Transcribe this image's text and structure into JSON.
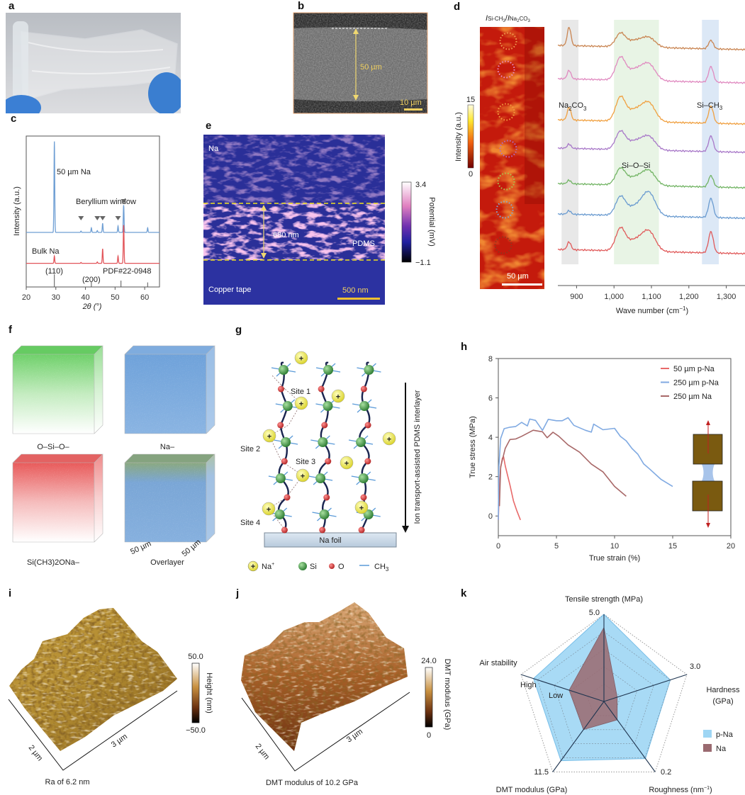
{
  "panel_letters": {
    "a": "a",
    "b": "b",
    "c": "c",
    "d": "d",
    "e": "e",
    "f": "f",
    "g": "g",
    "h": "h",
    "i": "i",
    "j": "j",
    "k": "k"
  },
  "b": {
    "thickness": "50 µm",
    "scale_bar": "10 µm"
  },
  "d_map": {
    "title_parts": [
      "I",
      "Si-CH",
      "3",
      "/",
      "I",
      "Na",
      "2",
      "CO",
      "3"
    ],
    "colorbar_max": "15",
    "colorbar_min": "0",
    "colorbar_label": "Intensity (a.u.)",
    "scale_bar": "50 µm",
    "spot_colors": [
      "#f0a050",
      "#e890c8",
      "#f2a040",
      "#b070c8",
      "#a8c850",
      "#80a8d8",
      "#8a3a20"
    ]
  },
  "e": {
    "top_label": "Na",
    "thickness": "680 nm",
    "layer_label": "PDMS",
    "bottom_label": "Copper tape",
    "scale_bar": "500 nm",
    "colorbar_max": "3.4",
    "colorbar_min": "−1.1",
    "colorbar_label": "Potential (mV)"
  },
  "f": {
    "labels": [
      "O–Si–O–",
      "Na–",
      "Si(CH3)2ONa–",
      "Overlayer"
    ],
    "dim_x": "50 µm",
    "dim_y": "50 µm"
  },
  "g": {
    "sites": [
      "Site 1",
      "Site 2",
      "Site 3",
      "Site 4"
    ],
    "foil": "Na foil",
    "arrow_label": "Ion transport-assisted PDMS interlayer",
    "legend": {
      "na": "Na",
      "na_sup": "+",
      "si": "Si",
      "o": "O",
      "ch3": "CH",
      "ch3_sub": "3"
    },
    "plus": "+"
  },
  "i": {
    "colorbar_max": "50.0",
    "colorbar_min": "−50.0",
    "colorbar_label": "Height (nm)",
    "dim_y": "2 µm",
    "dim_x": "3 µm",
    "caption": "Ra of 6.2 nm"
  },
  "j": {
    "colorbar_max": "24.0",
    "colorbar_min": "0",
    "colorbar_label": "DMT modulus (GPa)",
    "dim_y": "2 µm",
    "dim_x": "3 µm",
    "caption": "DMT modulus of 10.2 GPa"
  },
  "chart_data": [
    {
      "panel": "c",
      "type": "line",
      "title": "",
      "xlabel": "2θ (°)",
      "ylabel": "Intensity (a.u.)",
      "xlim": [
        20,
        65
      ],
      "ylim": [
        0,
        1.66
      ],
      "xticks": [
        20,
        30,
        40,
        50,
        60
      ],
      "xtick_labels": [
        "20",
        "30",
        "40",
        "50",
        "60"
      ],
      "series": [
        {
          "name": "50 µm Na",
          "color": "#6f9fd4",
          "offset": 0.6,
          "peaks": [
            [
              29.5,
              1.0
            ],
            [
              38.5,
              0.015
            ],
            [
              42,
              0.05
            ],
            [
              44,
              0.02
            ],
            [
              45.8,
              0.1
            ],
            [
              51,
              0.07
            ],
            [
              52.9,
              0.3
            ],
            [
              61,
              0.05
            ]
          ]
        },
        {
          "name": "Bulk Na",
          "color": "#e2555a",
          "offset": 0.26,
          "peaks": [
            [
              29.5,
              0.08
            ],
            [
              38.5,
              0.01
            ],
            [
              44,
              0.015
            ],
            [
              45.8,
              0.16
            ],
            [
              51,
              0.08
            ],
            [
              52.9,
              0.42
            ]
          ]
        }
      ],
      "reference": {
        "name": "PDF#22-0948",
        "sticks": [
          [
            29.5,
            0.14
          ],
          [
            42,
            0.06
          ],
          [
            52,
            0.07
          ],
          [
            61,
            0.05
          ]
        ],
        "hkl": [
          "(110)",
          "(200)"
        ]
      },
      "annotation": "Beryllium window",
      "be_marks": [
        38.5,
        44,
        45.8,
        51,
        52.9
      ]
    },
    {
      "panel": "d",
      "type": "line",
      "xlabel": "Wave number (cm",
      "xlabel_sup": "−1",
      "xlabel_end": ")",
      "xlim": [
        850,
        1350
      ],
      "ylim": [
        0,
        375
      ],
      "xticks": [
        900,
        1000,
        1100,
        1200,
        1300
      ],
      "xtick_labels": [
        "900",
        "1,000",
        "1,100",
        "1,200",
        "1,300"
      ],
      "bands": [
        {
          "label_parts": [
            "Na",
            "2",
            "CO",
            "3"
          ],
          "range": [
            860,
            905
          ],
          "color": "#e4e4e4"
        },
        {
          "label_parts": [
            "Si–O–Si"
          ],
          "range": [
            1000,
            1120
          ],
          "color": "#e4f2e0"
        },
        {
          "label_parts": [
            "Si–CH",
            "3"
          ],
          "range": [
            1235,
            1280
          ],
          "color": "#d6e4f4"
        }
      ],
      "series": [
        {
          "color": "#c98552",
          "offset": 333,
          "na": 26,
          "sio1": 18,
          "sio2": 13,
          "sich": 12
        },
        {
          "color": "#e08ac0",
          "offset": 286,
          "na": 12,
          "sio1": 30,
          "sio2": 22,
          "sich": 22
        },
        {
          "color": "#f0a040",
          "offset": 228,
          "na": 18,
          "sio1": 32,
          "sio2": 25,
          "sich": 24
        },
        {
          "color": "#a878c8",
          "offset": 188,
          "na": 6,
          "sio1": 24,
          "sio2": 18,
          "sich": 22
        },
        {
          "color": "#72b464",
          "offset": 138,
          "na": 5,
          "sio1": 22,
          "sio2": 20,
          "sich": 16
        },
        {
          "color": "#6a9bd0",
          "offset": 95,
          "na": 5,
          "sio1": 25,
          "sio2": 32,
          "sich": 27
        },
        {
          "color": "#e05a5a",
          "offset": 45,
          "na": 11,
          "sio1": 30,
          "sio2": 27,
          "sich": 30
        }
      ]
    },
    {
      "panel": "h",
      "type": "line",
      "xlabel": "True strain (%)",
      "ylabel": "True stress (MPa)",
      "xlim": [
        0,
        20
      ],
      "ylim": [
        -1,
        8
      ],
      "xticks": [
        0,
        5,
        10,
        15,
        20
      ],
      "yticks": [
        0,
        2,
        4,
        6,
        8
      ],
      "series": [
        {
          "name": "50 µm p-Na",
          "color": "#e86a6a",
          "points": [
            [
              0,
              -0.2
            ],
            [
              0.1,
              1.5
            ],
            [
              0.2,
              2.5
            ],
            [
              0.35,
              2.9
            ],
            [
              0.45,
              3.0
            ],
            [
              0.6,
              2.6
            ],
            [
              0.8,
              2.0
            ],
            [
              1.0,
              1.6
            ],
            [
              1.3,
              0.8
            ],
            [
              1.6,
              0.2
            ],
            [
              1.9,
              -0.2
            ]
          ]
        },
        {
          "name": "250 µm p-Na",
          "color": "#80aae2",
          "points": [
            [
              0,
              -0.2
            ],
            [
              0.05,
              2.5
            ],
            [
              0.2,
              4.0
            ],
            [
              0.5,
              4.4
            ],
            [
              1,
              4.5
            ],
            [
              1.5,
              4.6
            ],
            [
              2,
              4.7
            ],
            [
              2.5,
              4.6
            ],
            [
              2.7,
              4.95
            ],
            [
              3.2,
              4.8
            ],
            [
              3.8,
              4.4
            ],
            [
              4.3,
              4.9
            ],
            [
              5,
              4.8
            ],
            [
              5.5,
              4.9
            ],
            [
              6,
              4.95
            ],
            [
              6.5,
              4.6
            ],
            [
              7.5,
              4.4
            ],
            [
              8,
              4.2
            ],
            [
              8.2,
              4.7
            ],
            [
              9,
              4.4
            ],
            [
              10,
              4.4
            ],
            [
              10.5,
              4.1
            ],
            [
              11,
              3.8
            ],
            [
              11.5,
              3.4
            ],
            [
              12,
              3.2
            ],
            [
              12.5,
              2.6
            ],
            [
              13,
              2.4
            ],
            [
              14,
              1.9
            ],
            [
              15,
              1.5
            ]
          ]
        },
        {
          "name": "250 µm Na",
          "color": "#a86868",
          "points": [
            [
              0.1,
              0.5
            ],
            [
              0.2,
              2.5
            ],
            [
              0.6,
              3.5
            ],
            [
              1,
              3.85
            ],
            [
              1.5,
              3.9
            ],
            [
              2,
              4.1
            ],
            [
              3,
              4.3
            ],
            [
              3.8,
              4.3
            ],
            [
              4.2,
              4.0
            ],
            [
              4.7,
              4.2
            ],
            [
              5.2,
              4.1
            ],
            [
              6,
              3.6
            ],
            [
              7,
              3.2
            ],
            [
              8,
              2.7
            ],
            [
              9,
              2.2
            ],
            [
              10,
              1.5
            ],
            [
              11,
              1.0
            ]
          ]
        }
      ]
    },
    {
      "panel": "k",
      "type": "radar",
      "axes": [
        {
          "label": "Tensile strength (MPa)",
          "max": "5.0"
        },
        {
          "label": "Hardness",
          "label2": "(GPa)",
          "max": "3.0"
        },
        {
          "label": "Roughness (nm",
          "label_sup": "−1",
          "label_end": ")",
          "max": "0.2"
        },
        {
          "label": "DMT modulus (GPa)",
          "max": "11.5"
        },
        {
          "label": "Air stability",
          "max": "High",
          "min": "Low"
        }
      ],
      "series": [
        {
          "name": "p-Na",
          "color": "#9fd6f4",
          "values_fraction": [
            1.0,
            0.8,
            0.81,
            0.84,
            0.85
          ]
        },
        {
          "name": "Na",
          "color": "#9a6a70",
          "values_fraction": [
            0.85,
            0.16,
            0.26,
            0.4,
            0.42
          ]
        }
      ],
      "legend": "right"
    }
  ]
}
